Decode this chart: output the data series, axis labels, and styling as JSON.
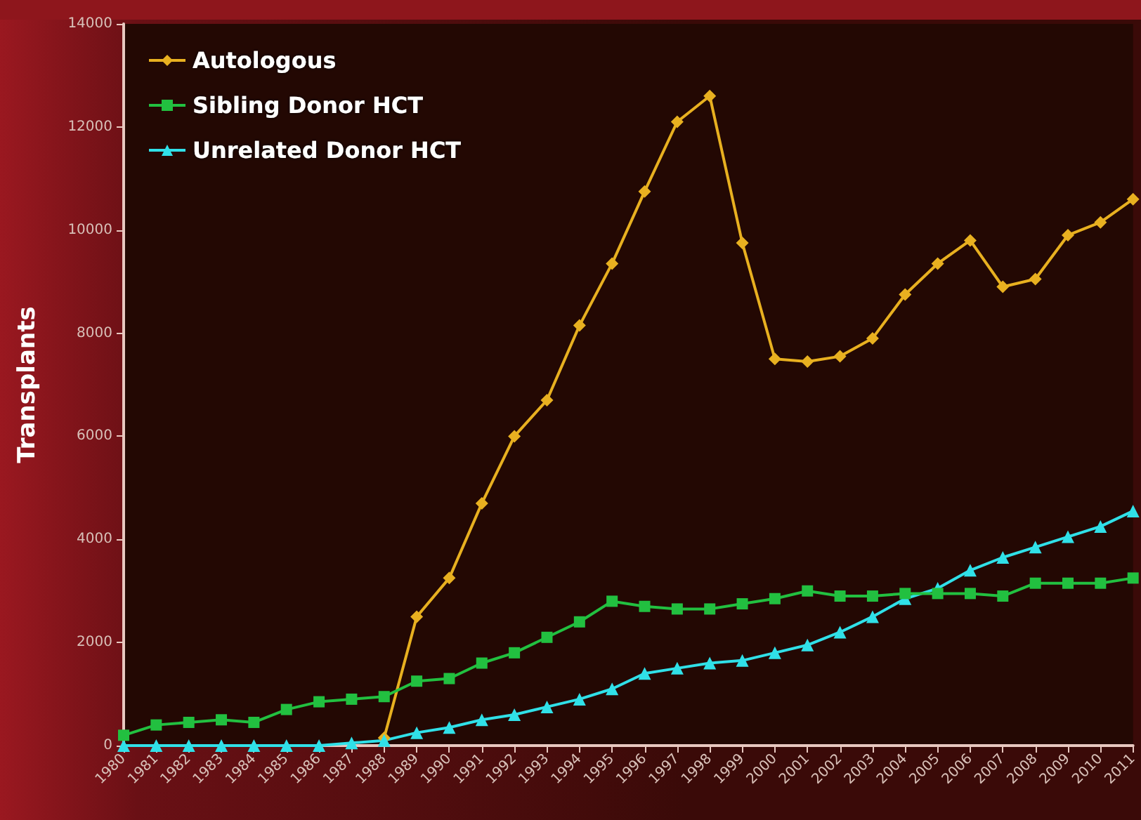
{
  "chart_data": {
    "type": "line",
    "ylabel": "Transplants",
    "categories": [
      "1980",
      "1981",
      "1982",
      "1983",
      "1984",
      "1985",
      "1986",
      "1987",
      "1988",
      "1989",
      "1990",
      "1991",
      "1992",
      "1993",
      "1994",
      "1995",
      "1996",
      "1997",
      "1998",
      "1999",
      "2000",
      "2001",
      "2002",
      "2003",
      "2004",
      "2005",
      "2006",
      "2007",
      "2008",
      "2009",
      "2010",
      "2011"
    ],
    "series": [
      {
        "name": "Autologous",
        "color": "#e8b020",
        "marker": "diamond",
        "values": [
          null,
          null,
          null,
          null,
          null,
          null,
          null,
          null,
          150,
          2500,
          3250,
          4700,
          6000,
          6700,
          8150,
          9350,
          10750,
          12100,
          12600,
          9750,
          7500,
          7450,
          7550,
          7900,
          8750,
          9350,
          9800,
          8900,
          9050,
          9900,
          10150,
          10600
        ]
      },
      {
        "name": "Sibling Donor HCT",
        "color": "#22c040",
        "marker": "square",
        "values": [
          200,
          400,
          450,
          500,
          450,
          700,
          850,
          900,
          950,
          1250,
          1300,
          1600,
          1800,
          2100,
          2400,
          2800,
          2700,
          2650,
          2650,
          2750,
          2850,
          3000,
          2900,
          2900,
          2950,
          2950,
          2950,
          2900,
          3150,
          3150,
          3150,
          3250
        ]
      },
      {
        "name": "Unrelated Donor HCT",
        "color": "#30e0e8",
        "marker": "triangle",
        "values": [
          0,
          0,
          0,
          0,
          0,
          0,
          0,
          50,
          100,
          250,
          350,
          500,
          600,
          750,
          900,
          1100,
          1400,
          1500,
          1600,
          1650,
          1800,
          1950,
          2200,
          2500,
          2850,
          3050,
          3400,
          3650,
          3850,
          4050,
          4250,
          4550
        ]
      }
    ],
    "ylim": [
      0,
      14000
    ],
    "yticks": [
      0,
      2000,
      4000,
      6000,
      8000,
      10000,
      12000,
      14000
    ],
    "grid": false,
    "legend": "top left"
  }
}
